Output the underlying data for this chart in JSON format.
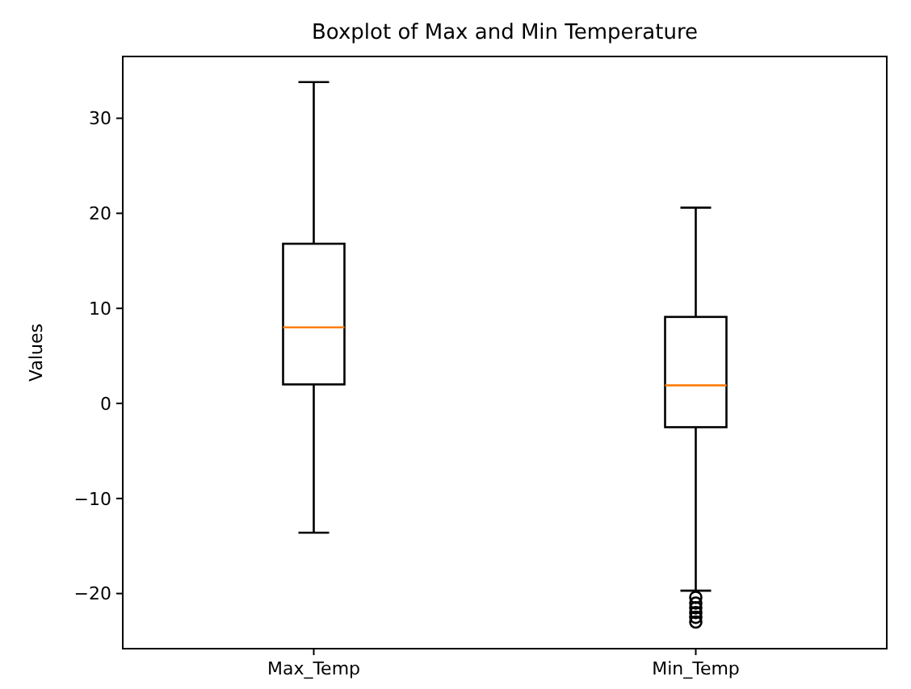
{
  "chart_data": {
    "type": "box",
    "title": "Boxplot of Max and Min Temperature",
    "ylabel": "Values",
    "categories": [
      "Max_Temp",
      "Min_Temp"
    ],
    "boxes": [
      {
        "low": -13.6,
        "q1": 2.0,
        "median": 8.0,
        "q3": 16.8,
        "high": 33.8
      },
      {
        "low": -19.7,
        "q1": -2.5,
        "median": 1.9,
        "q3": 9.1,
        "high": 20.6,
        "outliers": [
          -20.4,
          -21,
          -21.5,
          -22,
          -22.5,
          -23
        ]
      }
    ],
    "ylim": [
      -25.8,
      36.5
    ],
    "yticks": [
      -20,
      -10,
      0,
      10,
      20,
      30
    ],
    "grid": false,
    "color": "#000000"
  }
}
